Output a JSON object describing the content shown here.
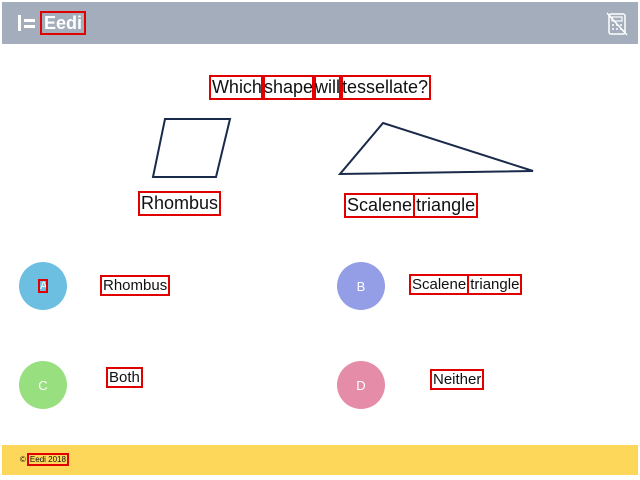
{
  "header": {
    "brand": "Eedi",
    "calculator_icon": "calculator-disabled-icon",
    "background": "#a3adbb"
  },
  "question": {
    "words": [
      "Which",
      "shape",
      "will",
      "tessellate?"
    ]
  },
  "shapes": {
    "left_label": "Rhombus",
    "right_label_words": [
      "Scalene",
      "triangle"
    ]
  },
  "answers": {
    "a": {
      "letter": "A",
      "text": "Rhombus",
      "color": "#6cbfe0"
    },
    "b": {
      "letter": "B",
      "text_words": [
        "Scalene",
        "triangle"
      ],
      "color": "#949ee6"
    },
    "c": {
      "letter": "C",
      "text": "Both",
      "color": "#97df7f"
    },
    "d": {
      "letter": "D",
      "text": "Neither",
      "color": "#e58ca8"
    }
  },
  "footer": {
    "copyright_symbol": "©",
    "copyright_text": "Eedi 2018",
    "background": "#fcd75a"
  }
}
